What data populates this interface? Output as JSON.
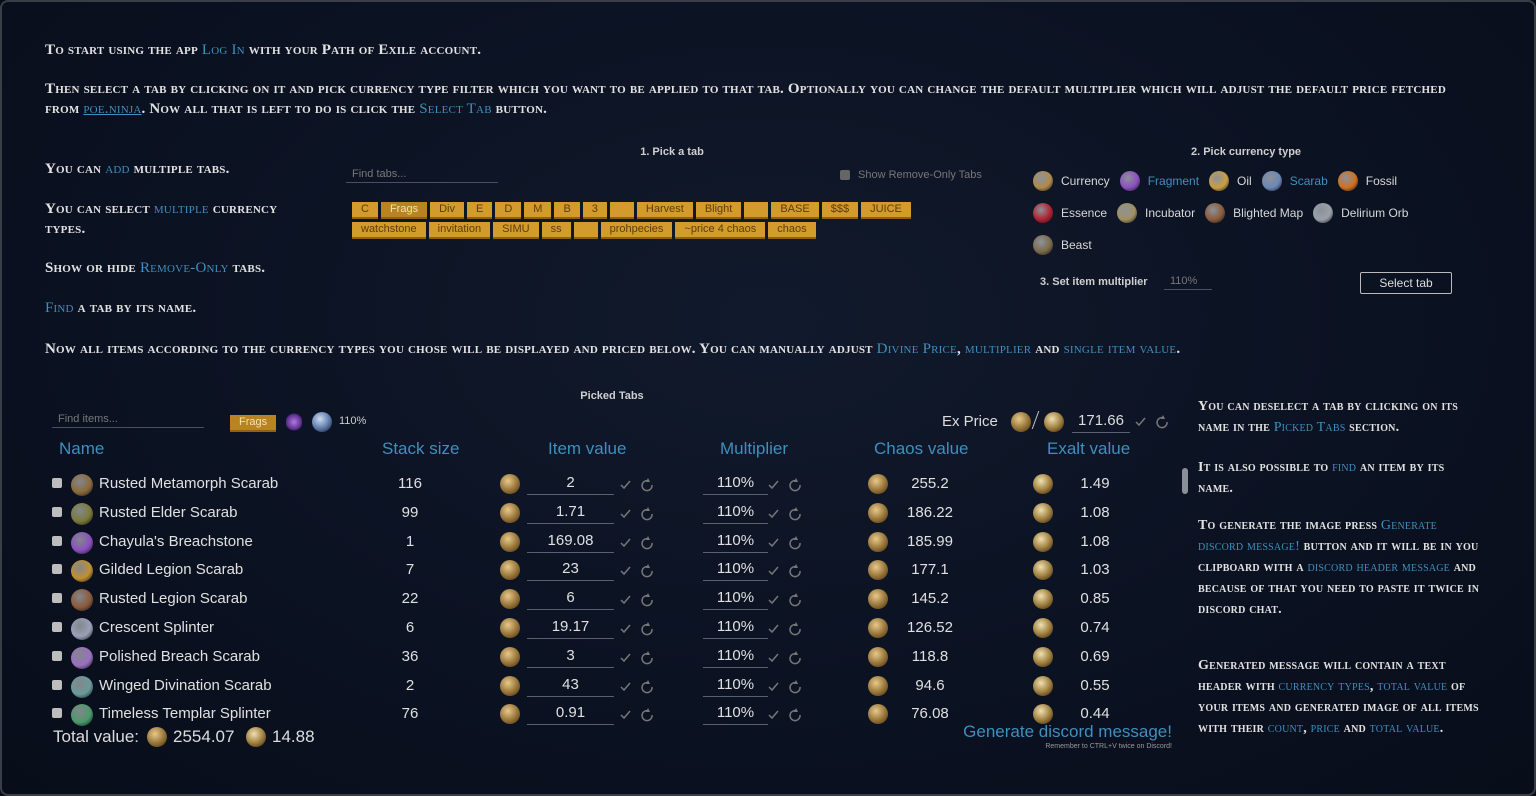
{
  "intro": [
    [
      "To start using the app ",
      {
        "text": "Log In",
        "style": "highlight"
      },
      " with your Path of Exile account."
    ],
    [
      "Then select a tab by clicking on it and pick currency type filter which you want to be applied to that tab. Optionally you can change the default multiplier which will adjust the default price fetched from ",
      {
        "text": "poe.ninja",
        "style": "link"
      },
      ". Now all that is left to do is click the ",
      {
        "text": "Select Tab",
        "style": "highlight"
      },
      " button."
    ]
  ],
  "left_tips": [
    [
      "You can ",
      {
        "text": "add",
        "style": "highlight"
      },
      " multiple tabs."
    ],
    [
      "You can select ",
      {
        "text": "multiple",
        "style": "highlight"
      },
      " currency types."
    ],
    [
      "Show or hide ",
      {
        "text": "Remove-Only",
        "style": "highlight"
      },
      " tabs."
    ],
    [
      {
        "text": "Find",
        "style": "highlight"
      },
      " a tab by its name."
    ]
  ],
  "tab_picker": {
    "title": "1. Pick a tab",
    "search_placeholder": "Find tabs...",
    "remove_only_label": "Show Remove-Only Tabs",
    "rows": [
      [
        "C",
        "Frags",
        "Div",
        "E",
        "D",
        "M",
        "B",
        "3",
        null,
        "Harvest",
        "Blight",
        null,
        "BASE",
        "$$$",
        "JUICE"
      ],
      [
        "watchstone",
        "invitation",
        "SIMU",
        "ss",
        null,
        "prohpecies",
        "~price 4 chaos",
        "chaos"
      ]
    ],
    "selected": "Frags"
  },
  "currency_picker": {
    "title": "2. Pick currency type",
    "types": [
      {
        "name": "Currency",
        "color": "#b08a4a"
      },
      {
        "name": "Fragment",
        "color": "#8a4fc0",
        "selected": true
      },
      {
        "name": "Oil",
        "color": "#c8a040"
      },
      {
        "name": "Scarab",
        "color": "#6a88b8",
        "selected": true
      },
      {
        "name": "Fossil",
        "color": "#d07020"
      },
      {
        "name": "Essence",
        "color": "#b02030"
      },
      {
        "name": "Incubator",
        "color": "#a09060"
      },
      {
        "name": "Blighted Map",
        "color": "#8a5a3a"
      },
      {
        "name": "Delirium Orb",
        "color": "#9aa0aa"
      },
      {
        "name": "Beast",
        "color": "#7a6a4a"
      }
    ]
  },
  "multiplier_setter": {
    "label": "3. Set item multiplier",
    "value": "110%",
    "button": "Select tab"
  },
  "note": [
    "Now all items according to the currency types you chose will be displayed and priced below. You can manually adjust ",
    {
      "text": "Divine Price",
      "style": "highlight"
    },
    ", ",
    {
      "text": "multiplier",
      "style": "highlight"
    },
    " and ",
    {
      "text": "single item value",
      "style": "highlight"
    },
    "."
  ],
  "picked": {
    "title": "Picked Tabs",
    "search_placeholder": "Find items...",
    "chip": "Frags",
    "chip_multiplier": "110%",
    "ex_price_label": "Ex Price",
    "ex_price": 171.66,
    "columns": [
      "Name",
      "Stack size",
      "Item value",
      "Multiplier",
      "Chaos value",
      "Exalt value"
    ],
    "rows": [
      {
        "name": "Rusted Metamorph Scarab",
        "color": "#8a6a3a",
        "stack": 116,
        "item_value": 2,
        "multiplier": "110%",
        "chaos": 255.2,
        "exalt": 1.49
      },
      {
        "name": "Rusted Elder Scarab",
        "color": "#7a7a3a",
        "stack": 99,
        "item_value": 1.71,
        "multiplier": "110%",
        "chaos": 186.22,
        "exalt": 1.08
      },
      {
        "name": "Chayula's Breachstone",
        "color": "#8a4fc0",
        "stack": 1,
        "item_value": 169.08,
        "multiplier": "110%",
        "chaos": 185.99,
        "exalt": 1.08
      },
      {
        "name": "Gilded Legion Scarab",
        "color": "#c09030",
        "stack": 7,
        "item_value": 23,
        "multiplier": "110%",
        "chaos": 177.1,
        "exalt": 1.03
      },
      {
        "name": "Rusted Legion Scarab",
        "color": "#8a5a3a",
        "stack": 22,
        "item_value": 6,
        "multiplier": "110%",
        "chaos": 145.2,
        "exalt": 0.85
      },
      {
        "name": "Crescent Splinter",
        "color": "#9aa0b8",
        "stack": 6,
        "item_value": 19.17,
        "multiplier": "110%",
        "chaos": 126.52,
        "exalt": 0.74
      },
      {
        "name": "Polished Breach Scarab",
        "color": "#9a70c0",
        "stack": 36,
        "item_value": 3,
        "multiplier": "110%",
        "chaos": 118.8,
        "exalt": 0.69
      },
      {
        "name": "Winged Divination Scarab",
        "color": "#6a9a9a",
        "stack": 2,
        "item_value": 43,
        "multiplier": "110%",
        "chaos": 94.6,
        "exalt": 0.55
      },
      {
        "name": "Timeless Templar Splinter",
        "color": "#4a9a6a",
        "stack": 76,
        "item_value": 0.91,
        "multiplier": "110%",
        "chaos": 76.08,
        "exalt": 0.44
      }
    ],
    "total_label": "Total value:",
    "total_chaos": 2554.07,
    "total_exalt": 14.88,
    "generate_button": "Generate discord message!",
    "generate_note": "Remember to CTRL+V twice on Discord!"
  },
  "right_tips": [
    [
      "You can deselect a tab by clicking on its name in the ",
      {
        "text": "Picked Tabs",
        "style": "highlight"
      },
      " section."
    ],
    [
      "It is also possible to ",
      {
        "text": "find",
        "style": "highlight"
      },
      " an item by its name."
    ],
    [
      "To generate the image press ",
      {
        "text": "Generate discord message!",
        "style": "highlight"
      },
      " button and it will be in you clipboard with a ",
      {
        "text": "discord header message",
        "style": "highlight"
      },
      " and because of that you need to paste it twice in discord chat."
    ],
    [
      "Generated message will contain a text header with ",
      {
        "text": "currency types",
        "style": "highlight"
      },
      ", ",
      {
        "text": "total value",
        "style": "highlight"
      },
      " of your items and generated image of all items with their ",
      {
        "text": "count",
        "style": "highlight"
      },
      ", ",
      {
        "text": "price",
        "style": "highlight"
      },
      " and ",
      {
        "text": "total value",
        "style": "highlight"
      },
      "."
    ]
  ]
}
